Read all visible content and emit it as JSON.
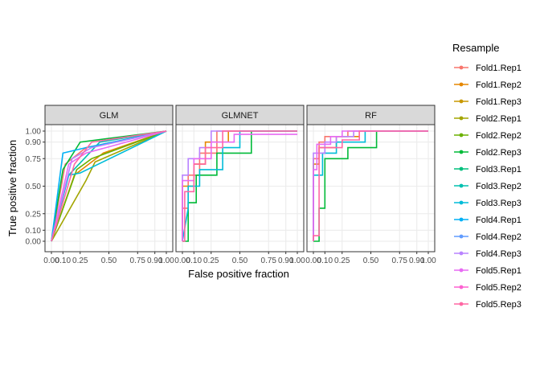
{
  "chart_data": {
    "type": "line",
    "xlabel": "False positive fraction",
    "ylabel": "True positive fraction",
    "xlim": [
      0,
      1
    ],
    "ylim": [
      0,
      1
    ],
    "x_ticks": [
      0.0,
      0.1,
      0.25,
      0.5,
      0.75,
      0.9,
      1.0
    ],
    "x_tick_labels": [
      "0.00",
      "0.10",
      "0.25",
      "0.50",
      "0.75",
      "0.90",
      "1.00"
    ],
    "y_ticks": [
      0.0,
      0.1,
      0.25,
      0.5,
      0.75,
      0.9,
      1.0
    ],
    "y_tick_labels": [
      "0.00",
      "0.10",
      "0.25",
      "0.50",
      "0.75",
      "0.90",
      "1.00"
    ],
    "grid": true,
    "legend": {
      "title": "Resample",
      "position": "right"
    },
    "facets": [
      "GLM",
      "GLMNET",
      "RF"
    ],
    "series": [
      {
        "name": "Fold1.Rep1",
        "color": "#F8766D"
      },
      {
        "name": "Fold1.Rep2",
        "color": "#E58700"
      },
      {
        "name": "Fold1.Rep3",
        "color": "#C99800"
      },
      {
        "name": "Fold2.Rep1",
        "color": "#A3A500"
      },
      {
        "name": "Fold2.Rep2",
        "color": "#6BB100"
      },
      {
        "name": "Fold2.Rep3",
        "color": "#00BA38"
      },
      {
        "name": "Fold3.Rep1",
        "color": "#00BF7D"
      },
      {
        "name": "Fold3.Rep2",
        "color": "#00C0AF"
      },
      {
        "name": "Fold3.Rep3",
        "color": "#00BCD8"
      },
      {
        "name": "Fold4.Rep1",
        "color": "#00B0F6"
      },
      {
        "name": "Fold4.Rep2",
        "color": "#619CFF"
      },
      {
        "name": "Fold4.Rep3",
        "color": "#B983FF"
      },
      {
        "name": "Fold5.Rep1",
        "color": "#E76BF3"
      },
      {
        "name": "Fold5.Rep2",
        "color": "#FD61D1"
      },
      {
        "name": "Fold5.Rep3",
        "color": "#FF67A4"
      }
    ],
    "panels": [
      {
        "facet": "GLM",
        "curves": [
          {
            "series": 0,
            "x": [
              0,
              0.12,
              0.3,
              1
            ],
            "y": [
              0,
              0.7,
              0.85,
              1
            ]
          },
          {
            "series": 1,
            "x": [
              0,
              0.2,
              0.45,
              1
            ],
            "y": [
              0,
              0.6,
              0.8,
              1
            ]
          },
          {
            "series": 3,
            "x": [
              0,
              0.3,
              0.38,
              1
            ],
            "y": [
              0,
              0.55,
              0.72,
              1
            ]
          },
          {
            "series": 4,
            "x": [
              0,
              0.22,
              0.35,
              1
            ],
            "y": [
              0,
              0.65,
              0.75,
              1
            ]
          },
          {
            "series": 5,
            "x": [
              0,
              0.1,
              0.25,
              1
            ],
            "y": [
              0,
              0.65,
              0.9,
              1
            ]
          },
          {
            "series": 7,
            "x": [
              0,
              0.15,
              0.42,
              1
            ],
            "y": [
              0,
              0.6,
              0.9,
              1
            ]
          },
          {
            "series": 8,
            "x": [
              0,
              0.15,
              0.25,
              1
            ],
            "y": [
              0,
              0.6,
              0.62,
              1
            ]
          },
          {
            "series": 9,
            "x": [
              0,
              0.1,
              0.3,
              1
            ],
            "y": [
              0,
              0.8,
              0.85,
              1
            ]
          },
          {
            "series": 11,
            "x": [
              0,
              0.18,
              0.35,
              1
            ],
            "y": [
              0,
              0.75,
              0.85,
              1
            ]
          },
          {
            "series": 12,
            "x": [
              0,
              0.15,
              0.3,
              1
            ],
            "y": [
              0,
              0.7,
              0.8,
              1
            ]
          },
          {
            "series": 14,
            "x": [
              0,
              0.2,
              0.35,
              1
            ],
            "y": [
              0,
              0.7,
              0.9,
              1
            ]
          }
        ]
      },
      {
        "facet": "GLMNET",
        "curves": [
          {
            "series": 0,
            "x": [
              0,
              0,
              0.05,
              0.05,
              0.15,
              0.15,
              0.3,
              0.3,
              1
            ],
            "y": [
              0,
              0.3,
              0.3,
              0.6,
              0.6,
              0.8,
              0.8,
              1,
              1
            ]
          },
          {
            "series": 1,
            "x": [
              0,
              0,
              0.1,
              0.1,
              0.2,
              0.2,
              0.4,
              0.4,
              1
            ],
            "y": [
              0,
              0.5,
              0.5,
              0.7,
              0.7,
              0.9,
              0.9,
              1,
              1
            ]
          },
          {
            "series": 5,
            "x": [
              0,
              0.05,
              0.05,
              0.12,
              0.12,
              0.3,
              0.3,
              0.6,
              0.6,
              1
            ],
            "y": [
              0,
              0,
              0.35,
              0.35,
              0.6,
              0.6,
              0.8,
              0.8,
              1,
              1
            ]
          },
          {
            "series": 8,
            "x": [
              0,
              0.05,
              0.05,
              0.15,
              0.15,
              0.35,
              0.35,
              0.5,
              0.5,
              1
            ],
            "y": [
              0,
              0.3,
              0.5,
              0.5,
              0.65,
              0.65,
              0.85,
              0.85,
              1,
              1
            ]
          },
          {
            "series": 11,
            "x": [
              0,
              0,
              0.05,
              0.05,
              0.15,
              0.15,
              0.25,
              0.25,
              1
            ],
            "y": [
              0,
              0.6,
              0.6,
              0.75,
              0.75,
              0.85,
              0.85,
              1,
              1
            ]
          },
          {
            "series": 12,
            "x": [
              0,
              0,
              0.1,
              0.1,
              0.25,
              0.25,
              0.45,
              0.45,
              1
            ],
            "y": [
              0,
              0.55,
              0.55,
              0.75,
              0.75,
              0.9,
              0.9,
              0.97,
              0.97
            ]
          },
          {
            "series": 14,
            "x": [
              0,
              0.02,
              0.02,
              0.1,
              0.1,
              0.2,
              0.2,
              0.35,
              0.35,
              1
            ],
            "y": [
              0,
              0,
              0.45,
              0.45,
              0.7,
              0.7,
              0.85,
              0.85,
              1,
              1
            ]
          }
        ]
      },
      {
        "facet": "RF",
        "curves": [
          {
            "series": 0,
            "x": [
              0,
              0,
              0.05,
              0.05,
              0.1,
              0.1,
              0.3,
              0.3,
              1
            ],
            "y": [
              0,
              0.75,
              0.75,
              0.9,
              0.9,
              0.95,
              0.95,
              1,
              1
            ]
          },
          {
            "series": 1,
            "x": [
              0,
              0,
              0.05,
              0.05,
              0.2,
              0.2,
              0.4,
              0.4,
              1
            ],
            "y": [
              0,
              0.7,
              0.7,
              0.85,
              0.85,
              0.95,
              0.95,
              1,
              1
            ]
          },
          {
            "series": 5,
            "x": [
              0,
              0.05,
              0.05,
              0.1,
              0.1,
              0.3,
              0.3,
              0.55,
              0.55,
              1
            ],
            "y": [
              0,
              0,
              0.3,
              0.3,
              0.75,
              0.75,
              0.85,
              0.85,
              1,
              1
            ]
          },
          {
            "series": 8,
            "x": [
              0,
              0,
              0.08,
              0.08,
              0.2,
              0.2,
              0.45,
              0.45,
              1
            ],
            "y": [
              0,
              0.6,
              0.6,
              0.8,
              0.8,
              0.9,
              0.9,
              1,
              1
            ]
          },
          {
            "series": 11,
            "x": [
              0,
              0,
              0.1,
              0.1,
              0.2,
              0.2,
              0.35,
              0.35,
              1
            ],
            "y": [
              0,
              0.8,
              0.8,
              0.9,
              0.9,
              0.95,
              0.95,
              1,
              1
            ]
          },
          {
            "series": 12,
            "x": [
              0,
              0,
              0.03,
              0.03,
              0.15,
              0.15,
              0.25,
              0.25,
              1
            ],
            "y": [
              0,
              0.65,
              0.65,
              0.88,
              0.88,
              0.95,
              0.95,
              1,
              1
            ]
          },
          {
            "series": 14,
            "x": [
              0,
              0,
              0.05,
              0.05,
              0.25,
              0.25,
              0.4,
              0.4,
              1
            ],
            "y": [
              0,
              0.05,
              0.05,
              0.85,
              0.85,
              0.92,
              0.92,
              1,
              1
            ]
          }
        ]
      }
    ]
  }
}
